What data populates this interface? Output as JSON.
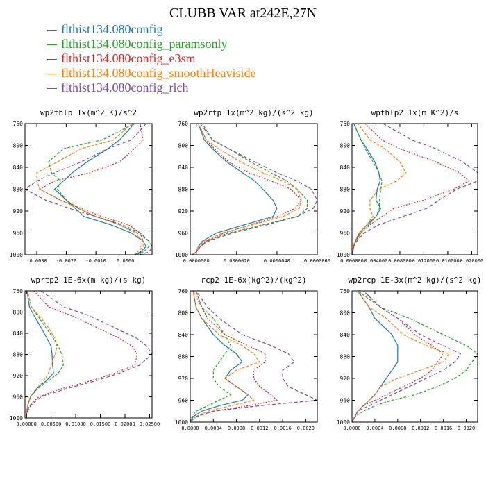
{
  "title": "CLUBB VAR at242E,27N",
  "legend": [
    {
      "label": "flthist134.080config",
      "color": "#1f77b4"
    },
    {
      "label": "flthist134.080config_paramsonly",
      "color": "#2ca02c"
    },
    {
      "label": "flthist134.080config_e3sm",
      "color": "#d62728"
    },
    {
      "label": "flthist134.080config_smoothHeaviside",
      "color": "#ff7f0e"
    },
    {
      "label": "flthist134.080config_rich",
      "color": "#7b4ea3"
    }
  ],
  "chart_data": [
    {
      "type": "line",
      "title": "wp2thlp  1x(m^2 K)/s^2",
      "xlim": [
        -0.0034,
        0.0009
      ],
      "ylim": [
        760,
        1000
      ],
      "y_inverted": true,
      "xticks": [
        -0.003,
        -0.002,
        -0.001,
        0.0,
        0.0005
      ],
      "xtick_labels": [
        "-0.0030",
        "-0.0020",
        "-0.0010",
        "0.0000",
        ""
      ],
      "yticks": [
        760,
        800,
        840,
        880,
        920,
        960,
        1000
      ],
      "y": [
        750,
        760,
        790,
        806,
        830,
        850,
        865,
        880,
        900,
        915,
        930,
        945,
        960,
        975,
        985,
        995,
        1000
      ],
      "series": [
        {
          "values": [
            0.0003,
            0.0003,
            -0.0002,
            -0.0006,
            -0.0013,
            -0.0018,
            -0.0021,
            -0.0024,
            -0.002,
            -0.0017,
            -0.0014,
            -0.0005,
            0.0002,
            0.0006,
            0.0007,
            0.0005,
            0.0003
          ]
        },
        {
          "values": [
            0.0004,
            0.0003,
            -0.0008,
            -0.0021,
            -0.0026,
            -0.0025,
            -0.0022,
            -0.0023,
            -0.002,
            -0.0016,
            -0.001,
            -0.0002,
            0.0004,
            0.0008,
            0.0008,
            0.0006,
            0.0003
          ]
        },
        {
          "values": [
            0.0006,
            0.0005,
            0.0006,
            0.0003,
            -0.0002,
            -0.0012,
            -0.0024,
            -0.0029,
            -0.0022,
            -0.0015,
            -0.0008,
            0.0001,
            0.0005,
            0.0006,
            0.0005,
            0.0005,
            0.0004
          ]
        },
        {
          "values": [
            0.0002,
            0.0002,
            -0.0004,
            -0.0015,
            -0.0023,
            -0.003,
            -0.003,
            -0.0029,
            -0.0022,
            -0.0016,
            -0.001,
            -0.0002,
            0.0003,
            0.0006,
            0.0006,
            0.0004,
            0.0003
          ]
        },
        {
          "values": [
            0.0007,
            0.0007,
            0.0002,
            -0.0006,
            -0.0015,
            -0.0024,
            -0.003,
            -0.0034,
            -0.0027,
            -0.0019,
            -0.001,
            -0.0001,
            0.0005,
            0.0008,
            0.0009,
            0.0008,
            0.0005
          ]
        }
      ]
    },
    {
      "type": "line",
      "title": "wp2rtp  1x(m^2 kg)/(s^2 kg)",
      "xlim": [
        -3e-07,
        6e-06
      ],
      "ylim": [
        760,
        1000
      ],
      "y_inverted": true,
      "xticks": [
        0.0,
        2e-06,
        4e-06,
        6e-06
      ],
      "xtick_labels": [
        "0.0000000",
        "0.0000020",
        "0.0000040",
        "0.0000060"
      ],
      "yticks": [
        760,
        800,
        840,
        880,
        920,
        960,
        1000
      ],
      "y": [
        750,
        760,
        790,
        806,
        830,
        850,
        865,
        880,
        900,
        915,
        930,
        945,
        960,
        975,
        985,
        995,
        1000
      ],
      "series": [
        {
          "values": [
            1e-07,
            1e-07,
            4e-07,
            8e-07,
            1.5e-06,
            2.3e-06,
            2.9e-06,
            3.3e-06,
            3.8e-06,
            4e-06,
            3.8e-06,
            2.4e-06,
            1e-06,
            3e-07,
            1e-07,
            0.0,
            -2e-07
          ]
        },
        {
          "values": [
            3e-07,
            3e-07,
            8e-07,
            1.6e-06,
            2.7e-06,
            3.7e-06,
            4.5e-06,
            5e-06,
            5.5e-06,
            5.5e-06,
            5e-06,
            3.3e-06,
            1.6e-06,
            5e-07,
            2e-07,
            0.0,
            -2e-07
          ]
        },
        {
          "values": [
            1e-07,
            1e-07,
            5e-07,
            9e-07,
            1.6e-06,
            2.6e-06,
            3.7e-06,
            4.7e-06,
            5.2e-06,
            4.9e-06,
            4e-06,
            2.7e-06,
            1.4e-06,
            5e-07,
            2e-07,
            0.0,
            -2e-07
          ]
        },
        {
          "values": [
            1e-07,
            1e-07,
            5e-07,
            1.1e-06,
            2.2e-06,
            3.3e-06,
            4.3e-06,
            5e-06,
            5.2e-06,
            5.1e-06,
            4.3e-06,
            2.8e-06,
            1.3e-06,
            4e-07,
            1e-07,
            0.0,
            -2e-07
          ]
        },
        {
          "values": [
            2e-07,
            2e-07,
            8e-07,
            1.6e-06,
            2.9e-06,
            4e-06,
            5e-06,
            5.7e-06,
            6e-06,
            5.8e-06,
            5e-06,
            3.5e-06,
            1.8e-06,
            6e-07,
            2e-07,
            0.0,
            -2e-07
          ]
        }
      ]
    },
    {
      "type": "line",
      "title": "wpthlp2  1x(m K^2)/s",
      "xlim": [
        0,
        0.021
      ],
      "ylim": [
        760,
        1000
      ],
      "y_inverted": true,
      "xticks": [
        0.0,
        0.004,
        0.008,
        0.012,
        0.016,
        0.02
      ],
      "xtick_labels": [
        "0.000000",
        "0.004000",
        "0.008000",
        "0.012000",
        "0.016000",
        "0.020000"
      ],
      "yticks": [
        760,
        800,
        840,
        880,
        920,
        960,
        1000
      ],
      "y": [
        750,
        760,
        790,
        806,
        830,
        850,
        865,
        880,
        900,
        915,
        930,
        945,
        960,
        975,
        985,
        995,
        1000
      ],
      "series": [
        {
          "values": [
            0.0003,
            0.0003,
            0.0015,
            0.0025,
            0.0038,
            0.0045,
            0.0047,
            0.0042,
            0.004,
            0.0048,
            0.004,
            0.0025,
            0.0012,
            0.0006,
            0.0003,
            0.0001,
            0.0
          ]
        },
        {
          "values": [
            0.0003,
            0.0003,
            0.0015,
            0.0022,
            0.0035,
            0.0045,
            0.005,
            0.0048,
            0.0046,
            0.0046,
            0.004,
            0.0028,
            0.0014,
            0.0006,
            0.0003,
            0.0001,
            0.0
          ]
        },
        {
          "values": [
            0.0022,
            0.0022,
            0.005,
            0.008,
            0.014,
            0.018,
            0.0195,
            0.017,
            0.012,
            0.007,
            0.005,
            0.003,
            0.0015,
            0.0006,
            0.0002,
            0.0001,
            0.0
          ]
        },
        {
          "values": [
            0.001,
            0.001,
            0.003,
            0.0055,
            0.008,
            0.009,
            0.0075,
            0.0045,
            0.003,
            0.003,
            0.0035,
            0.0025,
            0.0012,
            0.0005,
            0.0002,
            0.0001,
            0.0
          ]
        },
        {
          "values": [
            0.0052,
            0.0052,
            0.01,
            0.014,
            0.0185,
            0.021,
            0.021,
            0.0175,
            0.0145,
            0.0125,
            0.0085,
            0.0045,
            0.002,
            0.0008,
            0.0003,
            0.0001,
            0.0
          ]
        }
      ]
    },
    {
      "type": "line",
      "title": "wprtp2  1E-6x(m kg)/(s kg)",
      "xlim": [
        -0.0003,
        0.0255
      ],
      "ylim": [
        760,
        1000
      ],
      "y_inverted": true,
      "xticks": [
        0.0,
        0.005,
        0.01,
        0.015,
        0.02,
        0.025
      ],
      "xtick_labels": [
        "0.00000",
        "0.00500",
        "0.01000",
        "0.01500",
        "0.02000",
        "0.02500"
      ],
      "yticks": [
        760,
        800,
        840,
        880,
        920,
        960,
        1000
      ],
      "y": [
        750,
        760,
        790,
        806,
        830,
        850,
        865,
        880,
        900,
        915,
        930,
        945,
        960,
        975,
        985,
        995,
        1000
      ],
      "series": [
        {
          "values": [
            0.0001,
            0.0001,
            0.0006,
            0.0015,
            0.003,
            0.0042,
            0.005,
            0.0052,
            0.0053,
            0.0055,
            0.004,
            0.002,
            0.0008,
            0.0003,
            0.0001,
            0.0,
            0.0
          ]
        },
        {
          "values": [
            0.0002,
            0.0002,
            0.001,
            0.0022,
            0.004,
            0.0055,
            0.0065,
            0.0072,
            0.0075,
            0.0065,
            0.0045,
            0.0022,
            0.0008,
            0.0003,
            0.0001,
            0.0,
            0.0
          ]
        },
        {
          "values": [
            0.0015,
            0.0015,
            0.0045,
            0.009,
            0.0145,
            0.019,
            0.0215,
            0.0225,
            0.022,
            0.018,
            0.013,
            0.007,
            0.0025,
            0.0008,
            0.0002,
            0.0,
            0.0
          ]
        },
        {
          "values": [
            0.0001,
            0.0001,
            0.001,
            0.0025,
            0.0045,
            0.0058,
            0.0062,
            0.0058,
            0.005,
            0.0045,
            0.0035,
            0.002,
            0.0008,
            0.0003,
            0.0001,
            0.0,
            0.0
          ]
        },
        {
          "values": [
            0.003,
            0.003,
            0.0075,
            0.0125,
            0.018,
            0.0225,
            0.0245,
            0.0255,
            0.023,
            0.019,
            0.014,
            0.008,
            0.003,
            0.001,
            0.0003,
            0.0,
            0.0
          ]
        }
      ]
    },
    {
      "type": "line",
      "title": "rcp2  1E-6x(kg^2)/(kg^2)",
      "xlim": [
        0,
        0.0022
      ],
      "ylim": [
        760,
        1000
      ],
      "y_inverted": true,
      "xticks": [
        0.0,
        0.0004,
        0.0008,
        0.0012,
        0.0016,
        0.002
      ],
      "xtick_labels": [
        "0.0000",
        "0.0004",
        "0.0008",
        "0.0012",
        "0.0016",
        "0.0020"
      ],
      "yticks": [
        760,
        800,
        840,
        880,
        920,
        960,
        1000
      ],
      "y": [
        755,
        760,
        790,
        810,
        840,
        860,
        875,
        890,
        905,
        920,
        935,
        950,
        960,
        970,
        980,
        990,
        1000
      ],
      "series": [
        {
          "values": [
            5e-05,
            5e-05,
            0.0001,
            0.0002,
            0.0004,
            0.0006,
            0.0008,
            0.0009,
            0.0007,
            0.0006,
            0.0008,
            0.001,
            0.0009,
            0.0005,
            0.0002,
            5e-05,
            0.0
          ]
        },
        {
          "values": [
            0.0001,
            0.0001,
            0.0002,
            0.0004,
            0.0006,
            0.0007,
            0.0006,
            0.0005,
            0.0004,
            0.0004,
            0.0005,
            0.0007,
            0.0005,
            0.0003,
            0.0001,
            3e-05,
            0.0
          ]
        },
        {
          "values": [
            5e-05,
            5e-05,
            0.0002,
            0.0003,
            0.0006,
            0.001,
            0.0013,
            0.0013,
            0.0011,
            0.0011,
            0.0012,
            0.0014,
            0.0015,
            0.001,
            0.0004,
            0.0001,
            0.0
          ]
        },
        {
          "values": [
            5e-05,
            5e-05,
            0.0001,
            0.0002,
            0.0005,
            0.0009,
            0.0011,
            0.0012,
            0.0008,
            0.0006,
            0.0008,
            0.001,
            0.0011,
            0.0007,
            0.0003,
            0.0001,
            0.0
          ]
        },
        {
          "values": [
            0.0001,
            0.0001,
            0.0003,
            0.0005,
            0.0009,
            0.0014,
            0.0017,
            0.0018,
            0.0016,
            0.0016,
            0.0017,
            0.002,
            0.0022,
            0.0012,
            0.0004,
            0.0001,
            0.0
          ]
        }
      ]
    },
    {
      "type": "line",
      "title": "wp2rcp  1E-3x(m^2 kg)/(s^2 kg)",
      "xlim": [
        0,
        0.0022
      ],
      "ylim": [
        760,
        1000
      ],
      "y_inverted": true,
      "xticks": [
        0.0,
        0.0004,
        0.0008,
        0.0012,
        0.0016,
        0.002
      ],
      "xtick_labels": [
        "0.0000",
        "0.0004",
        "0.0008",
        "0.0012",
        "0.0016",
        "0.0020"
      ],
      "yticks": [
        760,
        800,
        840,
        880,
        920,
        960,
        1000
      ],
      "y": [
        755,
        760,
        790,
        810,
        840,
        860,
        875,
        890,
        905,
        920,
        935,
        950,
        960,
        970,
        980,
        990,
        1000
      ],
      "series": [
        {
          "values": [
            0.0001,
            0.0001,
            0.0003,
            0.0004,
            0.0007,
            0.0008,
            0.0008,
            0.0008,
            0.0007,
            0.0006,
            0.0005,
            0.0004,
            0.0003,
            0.0002,
            0.0001,
            5e-05,
            0.0
          ]
        },
        {
          "values": [
            0.0001,
            0.0001,
            0.0005,
            0.001,
            0.0016,
            0.002,
            0.0022,
            0.0021,
            0.002,
            0.0018,
            0.0015,
            0.0011,
            0.0007,
            0.0004,
            0.0002,
            5e-05,
            0.0
          ]
        },
        {
          "values": [
            0.0002,
            0.0002,
            0.0005,
            0.0008,
            0.0011,
            0.0014,
            0.0016,
            0.0015,
            0.0014,
            0.0012,
            0.0009,
            0.0006,
            0.0004,
            0.0002,
            0.0001,
            5e-05,
            0.0
          ]
        },
        {
          "values": [
            0.0001,
            0.0001,
            0.0003,
            0.0006,
            0.0009,
            0.0013,
            0.0017,
            0.0016,
            0.0012,
            0.0008,
            0.0005,
            0.0004,
            0.0003,
            0.0002,
            0.0001,
            5e-05,
            0.0
          ]
        },
        {
          "values": [
            0.0002,
            0.0002,
            0.0005,
            0.0008,
            0.0012,
            0.0016,
            0.0019,
            0.0018,
            0.0016,
            0.0013,
            0.001,
            0.0007,
            0.0005,
            0.0003,
            0.0001,
            5e-05,
            0.0
          ]
        }
      ]
    }
  ]
}
